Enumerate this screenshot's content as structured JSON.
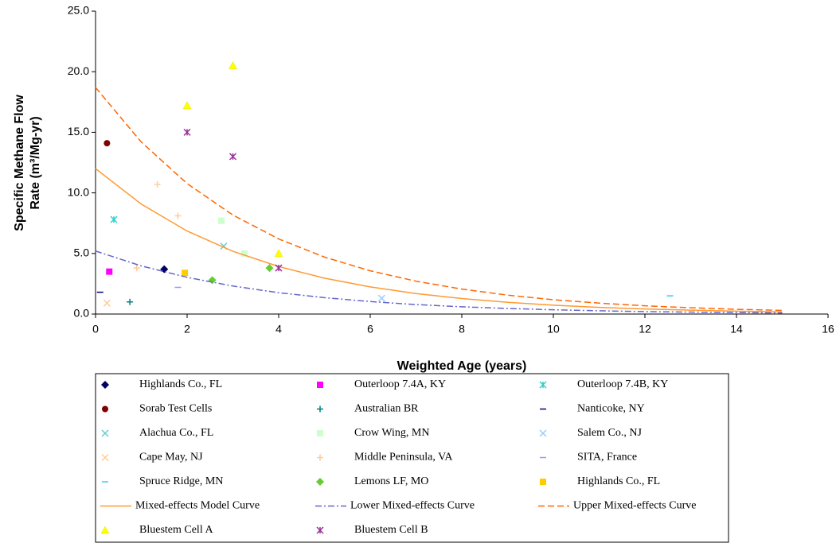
{
  "chart_data": {
    "type": "scatter",
    "x_label": "Weighted Age (years)",
    "y_label": [
      "Specific Methane Flow",
      "Rate (m³/Mg-yr)"
    ],
    "xlim": [
      0,
      16
    ],
    "xticks": [
      0,
      2,
      4,
      6,
      8,
      10,
      12,
      14,
      16
    ],
    "ylim": [
      0,
      25
    ],
    "yticks": [
      {
        "value": 0,
        "label": "0.0"
      },
      {
        "value": 5,
        "label": "5.0"
      },
      {
        "value": 10,
        "label": "10.0"
      },
      {
        "value": 15,
        "label": "15.0"
      },
      {
        "value": 20,
        "label": "20.0"
      },
      {
        "value": 25,
        "label": "25.0"
      }
    ],
    "grid": false,
    "series": [
      {
        "name": "Highlands Co., FL",
        "color": "#000066",
        "marker": "diamond",
        "x": [
          1.5
        ],
        "values": [
          3.7
        ]
      },
      {
        "name": "Outerloop 7.4A, KY",
        "color": "#ff00ff",
        "marker": "square",
        "x": [
          0.3
        ],
        "values": [
          3.5
        ]
      },
      {
        "name": "Outerloop 7.4B, KY",
        "color": "#33cccc",
        "marker": "asterisk",
        "x": [
          0.4
        ],
        "values": [
          7.8
        ]
      },
      {
        "name": "Sorab Test Cells",
        "color": "#800000",
        "marker": "circle",
        "x": [
          0.25
        ],
        "values": [
          14.1
        ]
      },
      {
        "name": "Australian BR",
        "color": "#008080",
        "marker": "plus",
        "x": [
          0.75
        ],
        "values": [
          1.0
        ]
      },
      {
        "name": "Nanticoke, NY",
        "color": "#000080",
        "marker": "dash",
        "x": [
          0.1
        ],
        "values": [
          1.8
        ]
      },
      {
        "name": "Alachua Co., FL",
        "color": "#66cccc",
        "marker": "x",
        "x": [
          2.8
        ],
        "values": [
          5.6
        ]
      },
      {
        "name": "Crow Wing, MN",
        "color": "#ccffcc",
        "marker": "square",
        "x": [
          2.75,
          3.25
        ],
        "values": [
          7.7,
          5.0
        ]
      },
      {
        "name": "Salem Co., NJ",
        "color": "#99ccff",
        "marker": "x",
        "x": [
          6.25
        ],
        "values": [
          1.3
        ]
      },
      {
        "name": "Cape May, NJ",
        "color": "#ffcc99",
        "marker": "x",
        "x": [
          0.25
        ],
        "values": [
          0.9
        ]
      },
      {
        "name": "Middle Peninsula, VA",
        "color": "#ffcc99",
        "marker": "plus",
        "x": [
          0.9,
          1.35,
          1.8
        ],
        "values": [
          3.8,
          10.7,
          8.1
        ]
      },
      {
        "name": "SITA, France",
        "color": "#9999ff",
        "marker": "dash",
        "x": [
          1.8
        ],
        "values": [
          2.2
        ]
      },
      {
        "name": "Spruce Ridge, MN",
        "color": "#33ccff",
        "marker": "dash",
        "x": [
          12.55
        ],
        "values": [
          1.5
        ]
      },
      {
        "name": "Lemons LF, MO",
        "color": "#66cc33",
        "marker": "diamond",
        "x": [
          2.55,
          3.8
        ],
        "values": [
          2.8,
          3.8
        ]
      },
      {
        "name": "Highlands Co., FL",
        "color": "#ffcc00",
        "marker": "square",
        "x": [
          1.95
        ],
        "values": [
          3.4
        ]
      },
      {
        "name": "Mixed-effects Model Curve",
        "color": "#ff9933",
        "line": "solid",
        "x": [
          0,
          1,
          2,
          3,
          4,
          5,
          6,
          7,
          8,
          9,
          10,
          11,
          12,
          13,
          14,
          15
        ],
        "values": [
          12,
          9.07,
          6.85,
          5.18,
          3.92,
          2.96,
          2.24,
          1.69,
          1.28,
          0.97,
          0.73,
          0.55,
          0.42,
          0.32,
          0.24,
          0.18
        ]
      },
      {
        "name": "Lower Mixed-effects Curve",
        "color": "#6666cc",
        "line": "dashdot",
        "x": [
          0,
          1,
          2,
          3,
          4,
          5,
          6,
          7,
          8,
          9,
          10,
          11,
          12,
          13,
          14,
          15
        ],
        "values": [
          5.2,
          3.97,
          3.03,
          2.31,
          1.76,
          1.35,
          1.03,
          0.78,
          0.6,
          0.46,
          0.35,
          0.27,
          0.2,
          0.16,
          0.12,
          0.09
        ]
      },
      {
        "name": "Upper Mixed-effects Curve",
        "color": "#ff6600",
        "line": "dashed",
        "x": [
          0,
          1,
          2,
          3,
          4,
          5,
          6,
          7,
          8,
          9,
          10,
          11,
          12,
          13,
          14,
          15
        ],
        "values": [
          18.7,
          14.19,
          10.77,
          8.17,
          6.2,
          4.7,
          3.57,
          2.71,
          2.06,
          1.56,
          1.18,
          0.9,
          0.68,
          0.52,
          0.39,
          0.3
        ]
      },
      {
        "name": "Bluestem Cell A",
        "color": "#ffff00",
        "marker": "triangle",
        "x": [
          2.0,
          3.0,
          4.0
        ],
        "values": [
          17.2,
          20.5,
          5.0
        ]
      },
      {
        "name": "Bluestem Cell B",
        "color": "#993399",
        "marker": "asterisk",
        "x": [
          2.0,
          3.0,
          4.0
        ],
        "values": [
          15.0,
          13.0,
          3.8
        ]
      }
    ]
  }
}
